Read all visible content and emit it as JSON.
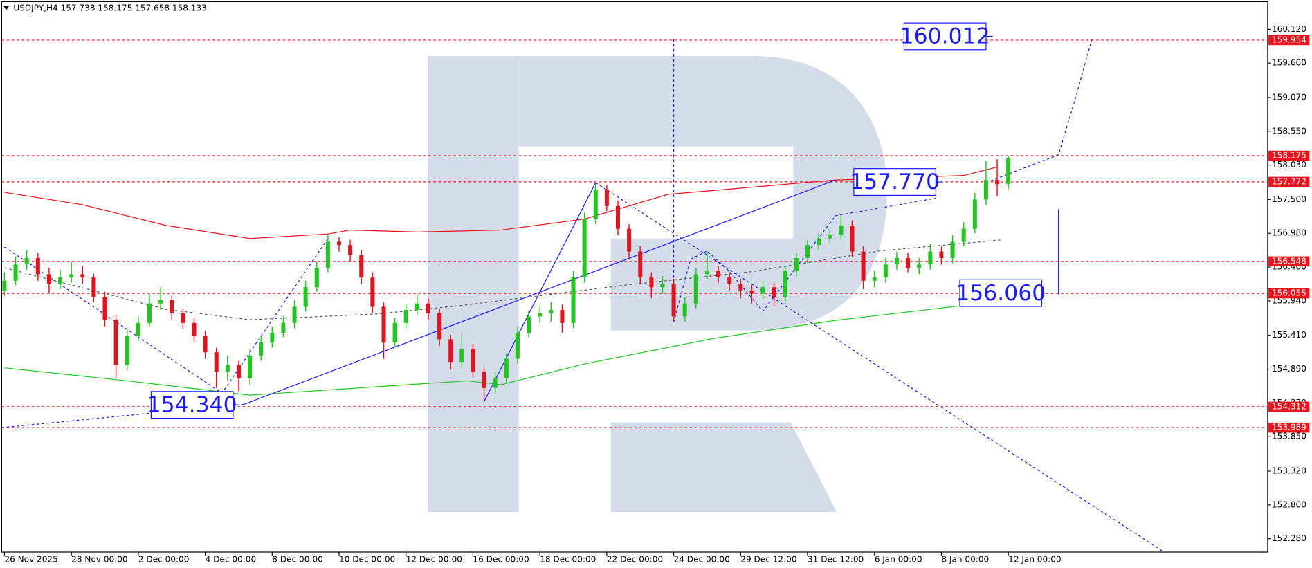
{
  "chart_data": {
    "type": "candlestick",
    "title": "USDJPY,H4 157.738 158.175 157.658 158.133",
    "up_color": "#22c522",
    "down_color": "#e0141e",
    "xlim": [
      -0.5,
      226.5
    ],
    "ylim": [
      152.074,
      160.545
    ],
    "xticks": [
      {
        "value": 0,
        "label": "26 Nov 2025"
      },
      {
        "value": 12,
        "label": "28 Nov 00:00"
      },
      {
        "value": 24,
        "label": "2 Dec 00:00"
      },
      {
        "value": 36,
        "label": "4 Dec 00:00"
      },
      {
        "value": 48,
        "label": "8 Dec 00:00"
      },
      {
        "value": 60,
        "label": "10 Dec 00:00"
      },
      {
        "value": 72,
        "label": "12 Dec 00:00"
      },
      {
        "value": 84,
        "label": "16 Dec 00:00"
      },
      {
        "value": 96,
        "label": "18 Dec 00:00"
      },
      {
        "value": 108,
        "label": "22 Dec 00:00"
      },
      {
        "value": 120,
        "label": "24 Dec 00:00"
      },
      {
        "value": 132,
        "label": "29 Dec 12:00"
      },
      {
        "value": 144,
        "label": "31 Dec 12:00"
      },
      {
        "value": 156,
        "label": "6 Jan 00:00"
      },
      {
        "value": 168,
        "label": "8 Jan 00:00"
      },
      {
        "value": 180,
        "label": "12 Jan 00:00"
      }
    ],
    "yticks": [
      {
        "value": 160.12,
        "label": "160.120"
      },
      {
        "value": 159.6,
        "label": "159.600"
      },
      {
        "value": 159.07,
        "label": "159.070"
      },
      {
        "value": 158.55,
        "label": "158.550"
      },
      {
        "value": 158.03,
        "label": "158.030"
      },
      {
        "value": 157.5,
        "label": "157.500"
      },
      {
        "value": 156.98,
        "label": "156.980"
      },
      {
        "value": 156.46,
        "label": "156.460"
      },
      {
        "value": 155.94,
        "label": "155.940"
      },
      {
        "value": 155.41,
        "label": "155.410"
      },
      {
        "value": 154.89,
        "label": "154.890"
      },
      {
        "value": 154.37,
        "label": "154.370"
      },
      {
        "value": 153.85,
        "label": "153.850"
      },
      {
        "value": 153.32,
        "label": "153.320"
      },
      {
        "value": 152.8,
        "label": "152.800"
      },
      {
        "value": 152.28,
        "label": "152.280"
      }
    ],
    "x": [
      0,
      2,
      4,
      6,
      8,
      10,
      12,
      14,
      16,
      18,
      20,
      22,
      24,
      26,
      28,
      30,
      32,
      34,
      36,
      38,
      40,
      42,
      44,
      46,
      48,
      50,
      52,
      54,
      56,
      58,
      60,
      62,
      64,
      66,
      68,
      70,
      72,
      74,
      76,
      78,
      80,
      82,
      84,
      86,
      88,
      90,
      92,
      94,
      96,
      98,
      100,
      102,
      104,
      106,
      108,
      110,
      112,
      114,
      116,
      118,
      120,
      122,
      124,
      126,
      128,
      130,
      132,
      134,
      136,
      138,
      140,
      142,
      144,
      146,
      148,
      150,
      152,
      154,
      156,
      158,
      160,
      162,
      164,
      166,
      168,
      170,
      172,
      174,
      176,
      178,
      180
    ],
    "candles": [
      [
        156.1,
        156.38,
        156.02,
        156.25
      ],
      [
        156.25,
        156.62,
        156.18,
        156.5
      ],
      [
        156.5,
        156.72,
        156.42,
        156.6
      ],
      [
        156.6,
        156.68,
        156.25,
        156.35
      ],
      [
        156.35,
        156.45,
        156.05,
        156.2
      ],
      [
        156.2,
        156.42,
        156.12,
        156.3
      ],
      [
        156.3,
        156.55,
        156.22,
        156.35
      ],
      [
        156.35,
        156.48,
        156.2,
        156.3
      ],
      [
        156.3,
        156.36,
        155.92,
        156.0
      ],
      [
        156.0,
        156.08,
        155.55,
        155.65
      ],
      [
        155.65,
        155.72,
        154.75,
        154.95
      ],
      [
        154.95,
        155.5,
        154.88,
        155.4
      ],
      [
        155.4,
        155.7,
        155.32,
        155.6
      ],
      [
        155.6,
        156.05,
        155.55,
        155.9
      ],
      [
        155.9,
        156.15,
        155.8,
        155.95
      ],
      [
        155.95,
        156.02,
        155.65,
        155.75
      ],
      [
        155.75,
        155.82,
        155.5,
        155.6
      ],
      [
        155.6,
        155.68,
        155.3,
        155.4
      ],
      [
        155.4,
        155.48,
        155.05,
        155.15
      ],
      [
        155.15,
        155.22,
        154.6,
        154.85
      ],
      [
        154.85,
        155.1,
        154.72,
        154.95
      ],
      [
        154.95,
        155.02,
        154.55,
        154.75
      ],
      [
        154.75,
        155.2,
        154.65,
        155.1
      ],
      [
        155.1,
        155.4,
        155.02,
        155.3
      ],
      [
        155.3,
        155.55,
        155.22,
        155.45
      ],
      [
        155.45,
        155.7,
        155.38,
        155.6
      ],
      [
        155.6,
        155.95,
        155.52,
        155.85
      ],
      [
        155.85,
        156.25,
        155.78,
        156.15
      ],
      [
        156.15,
        156.55,
        156.08,
        156.45
      ],
      [
        156.45,
        156.95,
        156.38,
        156.85
      ],
      [
        156.85,
        156.92,
        156.7,
        156.8
      ],
      [
        156.8,
        156.88,
        156.55,
        156.65
      ],
      [
        156.65,
        156.72,
        156.2,
        156.3
      ],
      [
        156.3,
        156.38,
        155.75,
        155.85
      ],
      [
        155.85,
        155.92,
        155.05,
        155.3
      ],
      [
        155.3,
        155.68,
        155.22,
        155.6
      ],
      [
        155.6,
        155.88,
        155.52,
        155.8
      ],
      [
        155.8,
        156.05,
        155.72,
        155.9
      ],
      [
        155.9,
        155.98,
        155.65,
        155.75
      ],
      [
        155.75,
        155.82,
        155.25,
        155.35
      ],
      [
        155.35,
        155.42,
        154.88,
        155.0
      ],
      [
        155.0,
        155.4,
        154.92,
        155.2
      ],
      [
        155.2,
        155.28,
        154.75,
        154.85
      ],
      [
        154.85,
        154.92,
        154.42,
        154.6
      ],
      [
        154.6,
        154.85,
        154.52,
        154.75
      ],
      [
        154.75,
        155.12,
        154.68,
        155.05
      ],
      [
        155.05,
        155.55,
        154.98,
        155.45
      ],
      [
        155.45,
        155.78,
        155.38,
        155.7
      ],
      [
        155.7,
        155.85,
        155.6,
        155.75
      ],
      [
        155.75,
        155.92,
        155.62,
        155.8
      ],
      [
        155.8,
        155.88,
        155.45,
        155.6
      ],
      [
        155.6,
        156.4,
        155.52,
        156.3
      ],
      [
        156.3,
        157.3,
        156.22,
        157.2
      ],
      [
        157.2,
        157.76,
        157.12,
        157.65
      ],
      [
        157.65,
        157.72,
        157.32,
        157.4
      ],
      [
        157.4,
        157.48,
        156.95,
        157.05
      ],
      [
        157.05,
        157.12,
        156.6,
        156.7
      ],
      [
        156.7,
        156.78,
        156.2,
        156.3
      ],
      [
        156.3,
        156.38,
        155.98,
        156.15
      ],
      [
        156.15,
        156.32,
        156.05,
        156.2
      ],
      [
        156.2,
        156.28,
        155.62,
        155.7
      ],
      [
        155.7,
        156.0,
        155.62,
        155.9
      ],
      [
        155.9,
        156.45,
        155.82,
        156.35
      ],
      [
        156.35,
        156.7,
        156.28,
        156.4
      ],
      [
        156.4,
        156.48,
        156.22,
        156.3
      ],
      [
        156.3,
        156.38,
        156.1,
        156.2
      ],
      [
        156.2,
        156.28,
        155.98,
        156.1
      ],
      [
        156.1,
        156.18,
        155.9,
        156.05
      ],
      [
        156.05,
        156.25,
        155.95,
        156.15
      ],
      [
        156.15,
        156.22,
        155.85,
        156.0
      ],
      [
        156.0,
        156.48,
        155.92,
        156.4
      ],
      [
        156.4,
        156.68,
        156.32,
        156.6
      ],
      [
        156.6,
        156.88,
        156.52,
        156.8
      ],
      [
        156.8,
        156.98,
        156.72,
        156.9
      ],
      [
        156.9,
        157.05,
        156.82,
        156.95
      ],
      [
        156.95,
        157.25,
        156.88,
        157.1
      ],
      [
        157.1,
        157.18,
        156.62,
        156.7
      ],
      [
        156.7,
        156.78,
        156.12,
        156.25
      ],
      [
        156.25,
        156.4,
        156.15,
        156.3
      ],
      [
        156.3,
        156.6,
        156.22,
        156.5
      ],
      [
        156.5,
        156.7,
        156.42,
        156.6
      ],
      [
        156.6,
        156.68,
        156.38,
        156.45
      ],
      [
        156.45,
        156.6,
        156.35,
        156.5
      ],
      [
        156.5,
        156.82,
        156.42,
        156.7
      ],
      [
        156.7,
        156.78,
        156.5,
        156.6
      ],
      [
        156.6,
        156.95,
        156.52,
        156.85
      ],
      [
        156.85,
        157.15,
        156.78,
        157.05
      ],
      [
        157.05,
        157.6,
        156.98,
        157.5
      ],
      [
        157.5,
        158.1,
        157.42,
        157.8
      ],
      [
        157.8,
        158.12,
        157.55,
        157.738
      ],
      [
        157.738,
        158.175,
        157.658,
        158.133
      ]
    ],
    "levels": [
      159.954,
      158.175,
      157.772,
      156.548,
      156.055,
      154.312,
      153.989
    ],
    "level_color": "#e8141e",
    "overlays": [
      {
        "color": "#e8141e",
        "dash": false,
        "x": [
          0,
          14,
          29,
          44,
          58,
          62,
          74,
          89,
          104,
          119,
          149,
          172,
          178
        ],
        "values": [
          157.61,
          157.42,
          157.1,
          156.9,
          156.97,
          157.03,
          157.0,
          157.03,
          157.2,
          157.58,
          157.8,
          157.87,
          158.0
        ]
      },
      {
        "color": "#22c522",
        "dash": false,
        "x": [
          0,
          22,
          44,
          67,
          83,
          89,
          104,
          127,
          149,
          172,
          174
        ],
        "values": [
          154.91,
          154.71,
          154.49,
          154.62,
          154.71,
          154.65,
          154.97,
          155.36,
          155.64,
          155.87,
          155.96
        ]
      },
      {
        "color": "#555555",
        "dash": true,
        "x": [
          0,
          29,
          44,
          67,
          82,
          112,
          134,
          157,
          179
        ],
        "values": [
          156.45,
          155.81,
          155.65,
          155.74,
          155.87,
          156.19,
          156.39,
          156.71,
          156.88
        ]
      },
      {
        "color": "#1a1aff",
        "dash": false,
        "x": [
          43,
          149
        ],
        "values": [
          154.35,
          157.8
        ]
      },
      {
        "color": "#1a1aff",
        "dash": false,
        "x": [
          86,
          106
        ],
        "values": [
          154.39,
          157.76
        ]
      },
      {
        "color": "#1a1aff",
        "dash": true,
        "x": [
          -0.5,
          43
        ],
        "values": [
          153.99,
          154.35
        ]
      },
      {
        "color": "#1a1aff",
        "dash": true,
        "x": [
          0,
          39,
          58
        ],
        "values": [
          156.77,
          154.52,
          156.9
        ]
      },
      {
        "color": "#1a1aff",
        "dash": true,
        "x": [
          106,
          208
        ],
        "values": [
          157.76,
          152.07
        ]
      },
      {
        "color": "#1a1aff",
        "dash": true,
        "x": [
          120,
          123,
          126,
          130,
          136,
          149,
          167
        ],
        "values": [
          155.61,
          156.58,
          156.71,
          156.39,
          155.78,
          157.25,
          157.52
        ]
      },
      {
        "color": "#1a1aff",
        "dash": true,
        "x": [
          176,
          189,
          192,
          195
        ],
        "values": [
          157.76,
          158.19,
          159.05,
          159.97
        ]
      },
      {
        "color": "#1a1aff",
        "dash": true,
        "x": [
          120,
          120
        ],
        "values": [
          159.97,
          155.61
        ]
      },
      {
        "color": "#1a1aff",
        "dash": false,
        "x": [
          189,
          189
        ],
        "values": [
          157.35,
          156.04
        ]
      }
    ],
    "annotations": [
      {
        "value": 160.012,
        "x": 176
      },
      {
        "value": 157.77,
        "label": "157.770",
        "x": 167
      },
      {
        "value": 156.06,
        "label": "156.060",
        "x": 186
      },
      {
        "value": 154.34,
        "label": "154.340",
        "x": 41
      }
    ]
  }
}
